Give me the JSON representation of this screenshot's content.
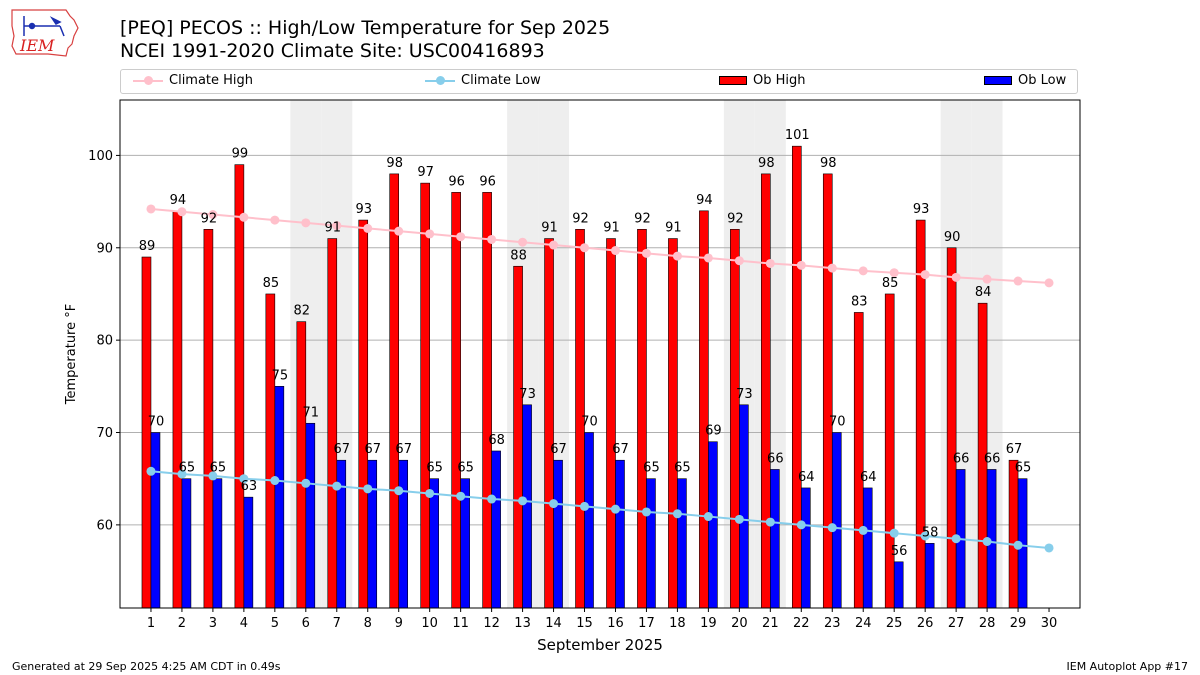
{
  "header": {
    "title_line1": "[PEQ] PECOS :: High/Low Temperature for Sep 2025",
    "title_line2": "NCEI 1991-2020 Climate Site: USC00416893",
    "logo_text": "IEM"
  },
  "footer": {
    "generated": "Generated at 29 Sep 2025 4:25 AM CDT in 0.49s",
    "app": "IEM Autoplot App #17"
  },
  "colors": {
    "ob_high": "#ff0000",
    "ob_low": "#0000ff",
    "climate_high": "#ffc0cb",
    "climate_low": "#87ceeb",
    "weekend": "#eeeeee",
    "grid": "#b0b0b0"
  },
  "chart_data": {
    "type": "bar",
    "title": "[PEQ] PECOS :: High/Low Temperature for Sep 2025",
    "xlabel": "September 2025",
    "ylabel": "Temperature °F",
    "ylim": [
      51,
      106
    ],
    "yticks": [
      60,
      70,
      80,
      90,
      100
    ],
    "grid": true,
    "legend_position": "top",
    "categories": [
      1,
      2,
      3,
      4,
      5,
      6,
      7,
      8,
      9,
      10,
      11,
      12,
      13,
      14,
      15,
      16,
      17,
      18,
      19,
      20,
      21,
      22,
      23,
      24,
      25,
      26,
      27,
      28,
      29,
      30
    ],
    "weekend_days": [
      6,
      7,
      13,
      14,
      20,
      21,
      27,
      28
    ],
    "series": [
      {
        "name": "Ob High",
        "kind": "bar",
        "values": [
          89,
          94,
          92,
          99,
          85,
          82,
          91,
          93,
          98,
          97,
          96,
          96,
          88,
          91,
          92,
          91,
          92,
          91,
          94,
          92,
          98,
          101,
          98,
          83,
          85,
          93,
          90,
          84,
          67,
          null
        ],
        "labels": [
          "89",
          "94",
          "92",
          "99",
          "85",
          "82",
          "91",
          "93",
          "98",
          "97",
          "96",
          "96",
          "88",
          "91",
          "92",
          "91",
          "92",
          "91",
          "94",
          "92",
          "98",
          "101",
          "98",
          "83",
          "85",
          "93",
          "90",
          "84",
          "67",
          ""
        ]
      },
      {
        "name": "Ob Low",
        "kind": "bar",
        "values": [
          70,
          65,
          65,
          63,
          75,
          71,
          67,
          67,
          67,
          65,
          65,
          68,
          73,
          67,
          70,
          67,
          65,
          65,
          69,
          73,
          66,
          64,
          70,
          64,
          56,
          58,
          66,
          66,
          65,
          null
        ],
        "labels": [
          "70",
          "65",
          "65",
          "63",
          "75",
          "71",
          "67",
          "67",
          "67",
          "65",
          "65",
          "68",
          "73",
          "67",
          "70",
          "67",
          "65",
          "65",
          "69",
          "73",
          "66",
          "64",
          "70",
          "64",
          "56",
          "58",
          "66",
          "66",
          "65",
          ""
        ]
      },
      {
        "name": "Climate High",
        "kind": "line",
        "values": [
          94.2,
          93.9,
          93.6,
          93.3,
          93.0,
          92.7,
          92.4,
          92.1,
          91.8,
          91.5,
          91.2,
          90.9,
          90.6,
          90.3,
          90.0,
          89.7,
          89.4,
          89.1,
          88.9,
          88.6,
          88.3,
          88.1,
          87.8,
          87.5,
          87.3,
          87.1,
          86.8,
          86.6,
          86.4,
          86.2
        ]
      },
      {
        "name": "Climate Low",
        "kind": "line",
        "values": [
          65.8,
          65.5,
          65.3,
          65.0,
          64.8,
          64.5,
          64.2,
          63.9,
          63.7,
          63.4,
          63.1,
          62.8,
          62.6,
          62.3,
          62.0,
          61.7,
          61.4,
          61.2,
          60.9,
          60.6,
          60.3,
          60.0,
          59.7,
          59.4,
          59.1,
          58.8,
          58.5,
          58.2,
          57.8,
          57.5
        ]
      }
    ]
  }
}
